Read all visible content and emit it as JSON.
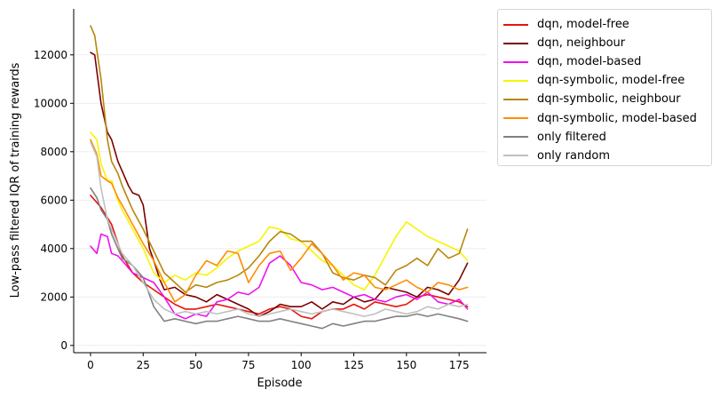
{
  "chart_data": {
    "type": "line",
    "title": "",
    "xlabel": "Episode",
    "ylabel": "Low-pass filtered IQR of training rewards",
    "xlim": [
      -8,
      188
    ],
    "ylim": [
      -300,
      13900
    ],
    "xticks": [
      0,
      25,
      50,
      75,
      100,
      125,
      150,
      175
    ],
    "yticks": [
      0,
      2000,
      4000,
      6000,
      8000,
      10000,
      12000
    ],
    "grid": "horizontal",
    "legend_position": "outside-top-right",
    "series": [
      {
        "name": "dqn, model-free",
        "color": "#e8140a",
        "x": [
          0,
          5,
          10,
          15,
          20,
          25,
          30,
          35,
          40,
          45,
          50,
          55,
          60,
          65,
          70,
          75,
          80,
          85,
          90,
          95,
          100,
          105,
          110,
          115,
          120,
          125,
          130,
          135,
          140,
          145,
          150,
          155,
          160,
          165,
          170,
          175,
          179
        ],
        "y": [
          6200,
          5700,
          5000,
          3700,
          3000,
          2600,
          2300,
          2000,
          1700,
          1500,
          1500,
          1600,
          1700,
          1600,
          1500,
          1400,
          1300,
          1500,
          1600,
          1500,
          1200,
          1100,
          1400,
          1500,
          1500,
          1700,
          1500,
          1800,
          1700,
          1600,
          1700,
          2000,
          2100,
          2000,
          1900,
          1800,
          1600
        ]
      },
      {
        "name": "dqn, neighbour",
        "color": "#7a0000",
        "x": [
          0,
          2,
          5,
          8,
          10,
          13,
          15,
          18,
          20,
          23,
          25,
          28,
          30,
          33,
          35,
          40,
          45,
          50,
          55,
          60,
          65,
          70,
          75,
          80,
          85,
          90,
          95,
          100,
          105,
          110,
          115,
          120,
          125,
          130,
          135,
          140,
          145,
          150,
          155,
          160,
          165,
          170,
          175,
          179
        ],
        "y": [
          12100,
          12000,
          10000,
          8800,
          8500,
          7600,
          7200,
          6600,
          6300,
          6200,
          5800,
          4000,
          3500,
          2700,
          2300,
          2400,
          2100,
          2000,
          1800,
          2100,
          1900,
          1700,
          1500,
          1200,
          1400,
          1700,
          1600,
          1600,
          1800,
          1500,
          1800,
          1700,
          2000,
          1800,
          1900,
          2400,
          2300,
          2200,
          2000,
          2400,
          2300,
          2100,
          2700,
          3400
        ]
      },
      {
        "name": "dqn, model-based",
        "color": "#ee11ee",
        "x": [
          0,
          3,
          5,
          8,
          10,
          13,
          15,
          20,
          25,
          30,
          35,
          40,
          45,
          50,
          55,
          60,
          65,
          70,
          75,
          80,
          85,
          90,
          95,
          100,
          105,
          110,
          115,
          120,
          125,
          130,
          135,
          140,
          145,
          150,
          155,
          160,
          165,
          170,
          175,
          179
        ],
        "y": [
          4100,
          3800,
          4600,
          4500,
          3800,
          3700,
          3500,
          3000,
          2800,
          2600,
          2000,
          1300,
          1100,
          1300,
          1200,
          1800,
          1900,
          2200,
          2100,
          2400,
          3400,
          3700,
          3300,
          2600,
          2500,
          2300,
          2400,
          2200,
          2000,
          2100,
          1900,
          1800,
          2000,
          2100,
          1900,
          2200,
          1800,
          1700,
          1900,
          1500
        ]
      },
      {
        "name": "dqn-symbolic, model-free",
        "color": "#f5f500",
        "x": [
          0,
          3,
          5,
          8,
          10,
          13,
          15,
          20,
          25,
          30,
          35,
          40,
          45,
          50,
          55,
          60,
          65,
          70,
          75,
          80,
          85,
          90,
          95,
          100,
          105,
          110,
          115,
          120,
          125,
          130,
          135,
          140,
          145,
          150,
          155,
          160,
          165,
          170,
          175,
          179
        ],
        "y": [
          8800,
          8500,
          7500,
          6800,
          6800,
          6000,
          5600,
          4800,
          4000,
          3000,
          2600,
          2900,
          2700,
          3000,
          2900,
          3200,
          3600,
          3900,
          4100,
          4300,
          4900,
          4800,
          4400,
          4300,
          3900,
          3500,
          3300,
          2900,
          2500,
          2300,
          2900,
          3700,
          4500,
          5100,
          4800,
          4500,
          4300,
          4100,
          3900,
          3500
        ]
      },
      {
        "name": "dqn-symbolic, neighbour",
        "color": "#b8860b",
        "x": [
          0,
          2,
          5,
          8,
          10,
          13,
          15,
          20,
          25,
          30,
          35,
          40,
          45,
          50,
          55,
          60,
          65,
          70,
          75,
          80,
          85,
          90,
          95,
          100,
          105,
          110,
          115,
          120,
          125,
          130,
          135,
          140,
          145,
          150,
          155,
          160,
          165,
          170,
          175,
          179
        ],
        "y": [
          13200,
          12800,
          11000,
          8500,
          7600,
          7100,
          6600,
          5600,
          4800,
          3900,
          3000,
          2600,
          2200,
          2500,
          2400,
          2600,
          2700,
          2900,
          3200,
          3700,
          4300,
          4700,
          4600,
          4300,
          4300,
          3800,
          3000,
          2800,
          2700,
          2900,
          2800,
          2500,
          3100,
          3300,
          3600,
          3300,
          4000,
          3600,
          3800,
          4800
        ]
      },
      {
        "name": "dqn-symbolic, model-based",
        "color": "#ff8c00",
        "x": [
          0,
          3,
          5,
          8,
          10,
          13,
          15,
          20,
          25,
          30,
          35,
          40,
          45,
          50,
          55,
          60,
          65,
          70,
          75,
          80,
          85,
          90,
          95,
          100,
          105,
          110,
          115,
          120,
          125,
          130,
          135,
          140,
          145,
          150,
          155,
          160,
          165,
          170,
          175,
          179
        ],
        "y": [
          8500,
          7900,
          7000,
          6800,
          6700,
          6100,
          5800,
          5000,
          4200,
          3500,
          2600,
          1800,
          2100,
          2900,
          3500,
          3300,
          3900,
          3800,
          2600,
          3300,
          3800,
          3900,
          3100,
          3600,
          4200,
          3800,
          3300,
          2700,
          3000,
          2900,
          2400,
          2300,
          2500,
          2700,
          2400,
          2200,
          2600,
          2500,
          2300,
          2400
        ]
      },
      {
        "name": "only filtered",
        "color": "#808080",
        "x": [
          0,
          3,
          5,
          8,
          10,
          13,
          15,
          20,
          25,
          30,
          35,
          40,
          45,
          50,
          55,
          60,
          65,
          70,
          75,
          80,
          85,
          90,
          95,
          100,
          105,
          110,
          115,
          120,
          125,
          130,
          135,
          140,
          145,
          150,
          155,
          160,
          165,
          170,
          175,
          179
        ],
        "y": [
          6500,
          6100,
          5600,
          5200,
          4600,
          4000,
          3600,
          3300,
          2800,
          1600,
          1000,
          1100,
          1000,
          900,
          1000,
          1000,
          1100,
          1200,
          1100,
          1000,
          1000,
          1100,
          1000,
          900,
          800,
          700,
          900,
          800,
          900,
          1000,
          1000,
          1100,
          1200,
          1200,
          1300,
          1200,
          1300,
          1200,
          1100,
          1000
        ]
      },
      {
        "name": "only random",
        "color": "#c0c0c0",
        "x": [
          0,
          3,
          5,
          8,
          10,
          13,
          15,
          20,
          25,
          30,
          35,
          40,
          45,
          50,
          55,
          60,
          65,
          70,
          75,
          80,
          85,
          90,
          95,
          100,
          105,
          110,
          115,
          120,
          125,
          130,
          135,
          140,
          145,
          150,
          155,
          160,
          165,
          170,
          175,
          179
        ],
        "y": [
          8400,
          7800,
          6500,
          5200,
          4800,
          4200,
          3800,
          3300,
          2600,
          1900,
          1500,
          1300,
          1400,
          1300,
          1400,
          1300,
          1400,
          1500,
          1300,
          1200,
          1300,
          1400,
          1500,
          1400,
          1300,
          1400,
          1500,
          1400,
          1300,
          1200,
          1300,
          1500,
          1400,
          1300,
          1400,
          1600,
          1500,
          1700,
          1600,
          1700
        ]
      }
    ]
  }
}
